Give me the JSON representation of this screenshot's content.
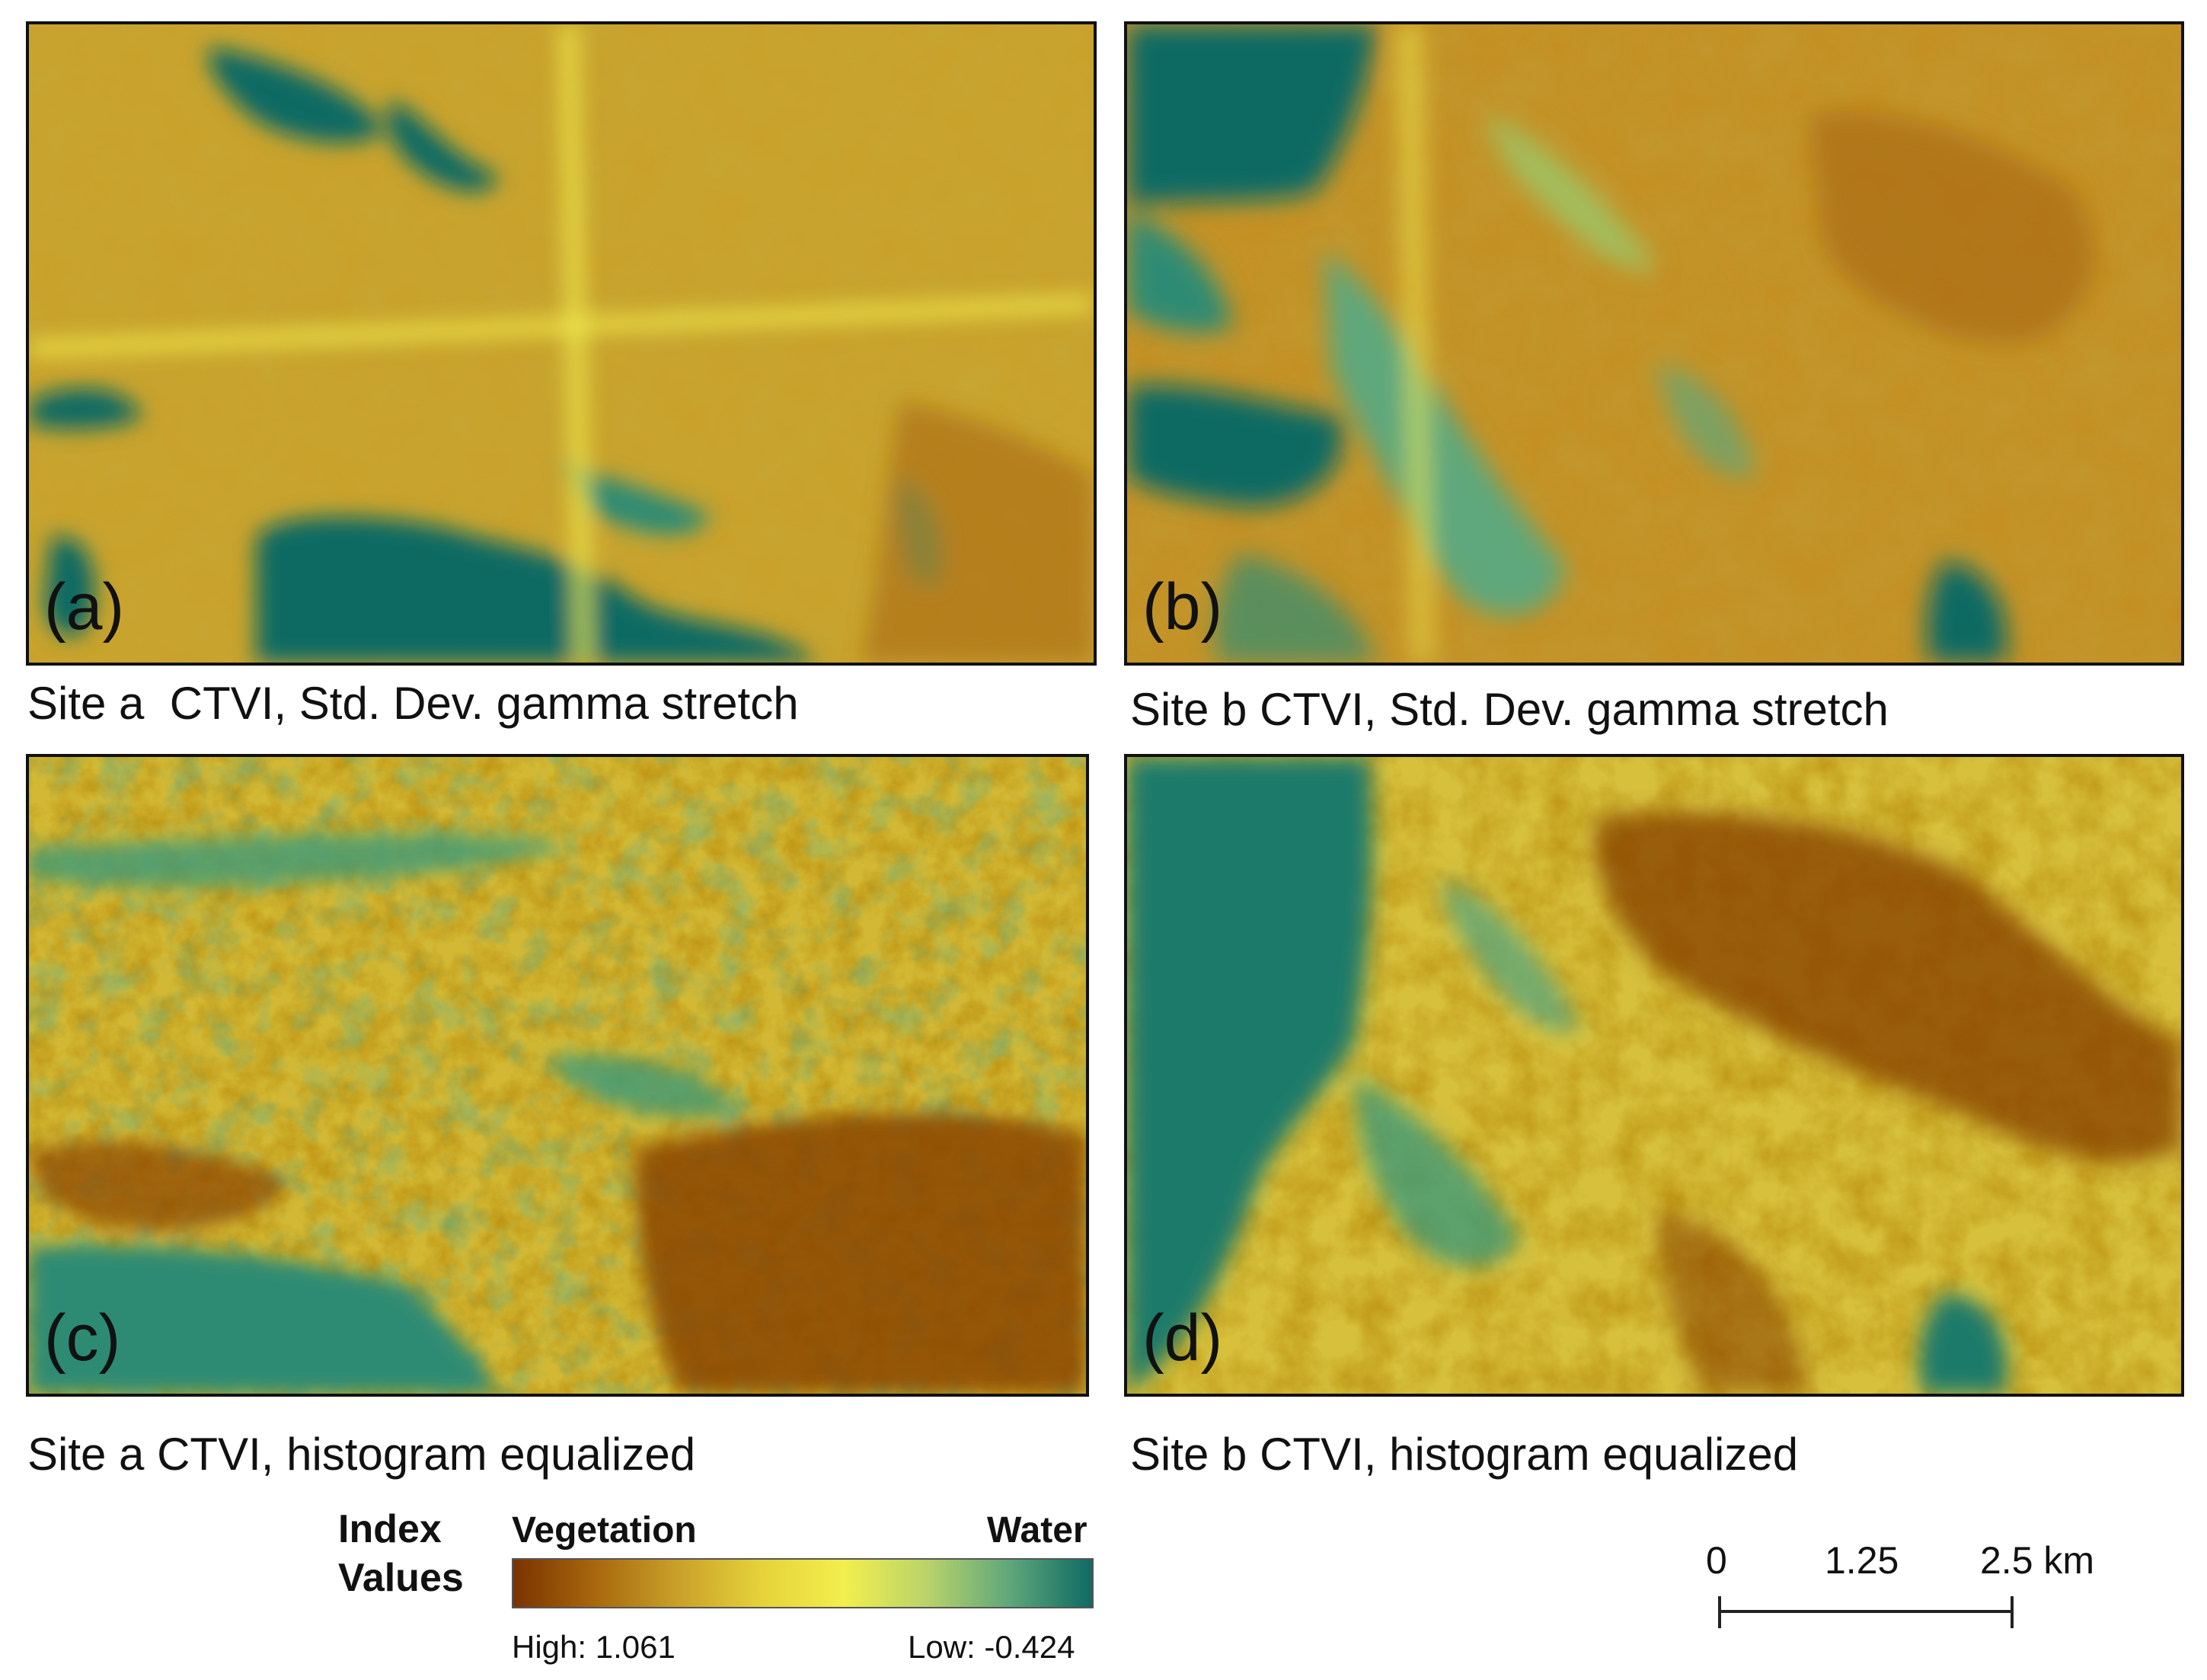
{
  "panels": [
    {
      "id": "a",
      "label": "(a)",
      "caption": "Site a  CTVI, Std. Dev. gamma stretch",
      "stretch": "std-dev-gamma",
      "site": "a"
    },
    {
      "id": "b",
      "label": "(b)",
      "caption": "Site b CTVI, Std. Dev. gamma stretch",
      "stretch": "std-dev-gamma",
      "site": "b"
    },
    {
      "id": "c",
      "label": "(c)",
      "caption": "Site a CTVI, histogram equalized",
      "stretch": "histogram-equalized",
      "site": "a"
    },
    {
      "id": "d",
      "label": "(d)",
      "caption": "Site b CTVI, histogram equalized",
      "stretch": "histogram-equalized",
      "site": "b"
    }
  ],
  "legend": {
    "title_line1": "Index",
    "title_line2": "Values",
    "left_label": "Vegetation",
    "right_label": "Water",
    "high_label": "High: 1.061",
    "low_label": "Low: -0.424",
    "colors": [
      "#7a3300",
      "#a8680e",
      "#c9a12a",
      "#e6d23a",
      "#f2ef4e",
      "#b9d36a",
      "#5fa77b",
      "#0e6a63"
    ]
  },
  "scale_bar": {
    "labels": [
      "0",
      "1.25",
      "2.5 km"
    ]
  }
}
